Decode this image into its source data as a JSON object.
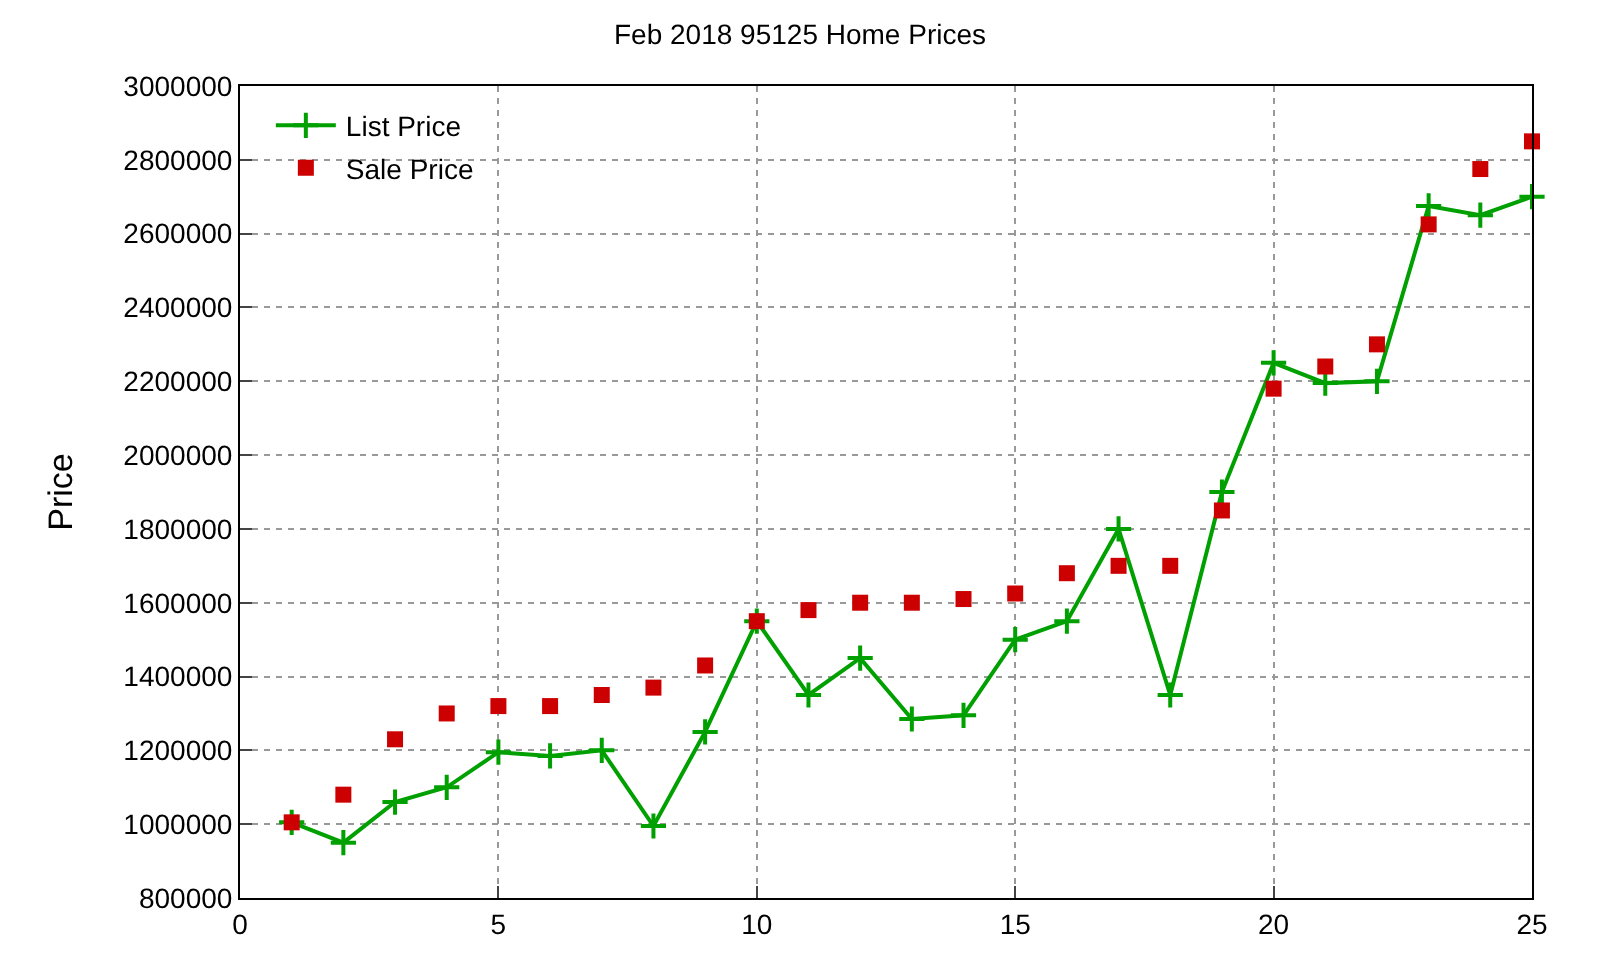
{
  "chart_data": {
    "type": "line",
    "title": "Feb 2018 95125 Home Prices",
    "ylabel": "Price",
    "x": [
      1,
      2,
      3,
      4,
      5,
      6,
      7,
      8,
      9,
      10,
      11,
      12,
      13,
      14,
      15,
      16,
      17,
      18,
      19,
      20,
      21,
      22,
      23,
      24,
      25
    ],
    "series": [
      {
        "name": "List Price",
        "marker": "cross",
        "color": "#00a000",
        "values": [
          1005000,
          950000,
          1060000,
          1100000,
          1195000,
          1185000,
          1200000,
          995000,
          1250000,
          1550000,
          1350000,
          1450000,
          1285000,
          1295000,
          1500000,
          1550000,
          1800000,
          1350000,
          1900000,
          2250000,
          2195000,
          2200000,
          2675000,
          2650000,
          2700000
        ]
      },
      {
        "name": "Sale Price",
        "type": "scatter",
        "marker": "square",
        "color": "#cc0000",
        "values": [
          1005000,
          1080000,
          1230000,
          1300000,
          1320000,
          1320000,
          1350000,
          1370000,
          1430000,
          1550000,
          1580000,
          1600000,
          1600000,
          1610000,
          1625000,
          1680000,
          1700000,
          1700000,
          1850000,
          2180000,
          2240000,
          2300000,
          2625000,
          2775000,
          2850000
        ]
      }
    ],
    "xlim": [
      0,
      25
    ],
    "xticks": [
      0,
      5,
      10,
      15,
      20,
      25
    ],
    "ylim": [
      800000,
      3000000
    ],
    "yticks": [
      800000,
      1000000,
      1200000,
      1400000,
      1600000,
      1800000,
      2000000,
      2200000,
      2400000,
      2600000,
      2800000,
      3000000
    ],
    "grid": true,
    "legend": "top left"
  }
}
